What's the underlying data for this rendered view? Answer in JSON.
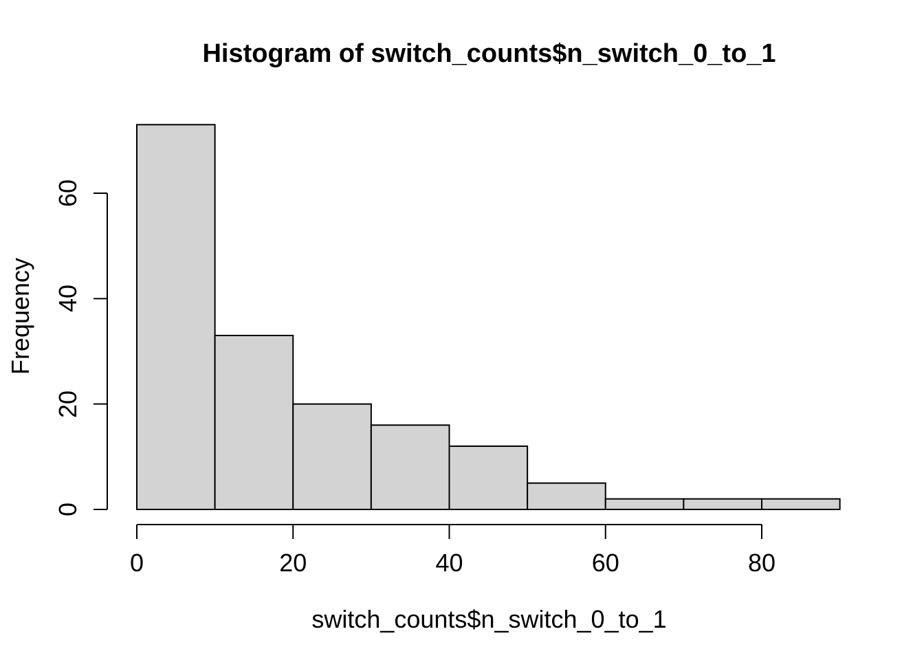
{
  "chart_data": {
    "type": "bar",
    "subtype": "histogram",
    "title": "Histogram of switch_counts$n_switch_0_to_1",
    "xlabel": "switch_counts$n_switch_0_to_1",
    "ylabel": "Frequency",
    "breaks": [
      0,
      10,
      20,
      30,
      40,
      50,
      60,
      70,
      80,
      90
    ],
    "counts": [
      73,
      33,
      20,
      16,
      12,
      5,
      2,
      2,
      2
    ],
    "x_ticks": [
      0,
      20,
      40,
      60,
      80
    ],
    "y_ticks": [
      0,
      20,
      40,
      60
    ],
    "xlim": [
      0,
      90
    ],
    "ylim": [
      0,
      73
    ],
    "grid": false,
    "legend": null,
    "colors": {
      "bar_fill": "#D3D3D3",
      "bar_stroke": "#000000",
      "axis": "#000000",
      "text": "#000000",
      "background": "#FFFFFF"
    }
  }
}
